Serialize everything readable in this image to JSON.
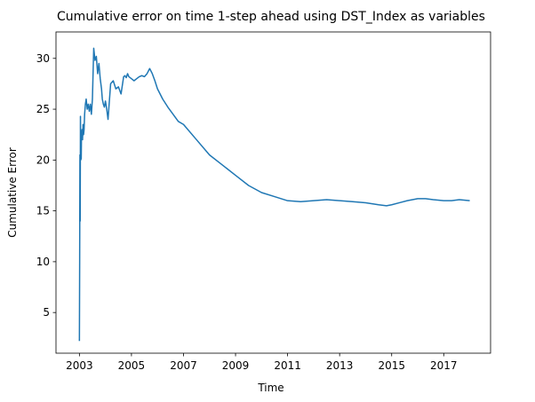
{
  "chart_data": {
    "type": "line",
    "title": "Cumulative error on time 1-step ahead using DST_Index as variables",
    "xlabel": "Time",
    "ylabel": "Cumulative Error",
    "xlim": [
      2002.1,
      2018.8
    ],
    "ylim": [
      1.0,
      32.6
    ],
    "xticks": [
      2003,
      2005,
      2007,
      2009,
      2011,
      2013,
      2015,
      2017
    ],
    "yticks": [
      5,
      10,
      15,
      20,
      25,
      30
    ],
    "grid": false,
    "legend": "none",
    "line_color": "#1f77b4",
    "series": [
      {
        "x": [
          2003.0,
          2003.01,
          2003.02,
          2003.03,
          2003.04,
          2003.05,
          2003.06,
          2003.07,
          2003.08,
          2003.1,
          2003.12,
          2003.14,
          2003.16,
          2003.18,
          2003.2,
          2003.23,
          2003.26,
          2003.3,
          2003.34,
          2003.38,
          2003.42,
          2003.46,
          2003.5,
          2003.55,
          2003.6,
          2003.65,
          2003.7,
          2003.75,
          2003.8,
          2003.85,
          2003.88,
          2003.92,
          2003.96,
          2004.0,
          2004.05,
          2004.1,
          2004.2,
          2004.3,
          2004.4,
          2004.5,
          2004.6,
          2004.7,
          2004.75,
          2004.8,
          2004.85,
          2004.9,
          2005.0,
          2005.1,
          2005.2,
          2005.3,
          2005.4,
          2005.5,
          2005.6,
          2005.7,
          2005.8,
          2005.9,
          2006.0,
          2006.1,
          2006.2,
          2006.4,
          2006.6,
          2006.8,
          2007.0,
          2007.5,
          2008.0,
          2008.5,
          2009.0,
          2009.5,
          2010.0,
          2010.5,
          2011.0,
          2011.5,
          2012.0,
          2012.5,
          2013.0,
          2013.5,
          2014.0,
          2014.5,
          2014.8,
          2015.0,
          2015.3,
          2015.6,
          2016.0,
          2016.3,
          2016.6,
          2017.0,
          2017.3,
          2017.6,
          2018.0
        ],
        "y": [
          2.2,
          10.2,
          20.5,
          14.0,
          24.3,
          20.0,
          21.5,
          20.1,
          22.5,
          23.0,
          22.0,
          23.5,
          22.5,
          23.0,
          24.5,
          25.5,
          26.0,
          25.0,
          25.5,
          24.8,
          25.5,
          24.5,
          26.0,
          31.0,
          29.8,
          30.2,
          28.5,
          29.5,
          28.0,
          27.0,
          26.0,
          25.5,
          25.2,
          25.8,
          25.0,
          24.0,
          27.5,
          27.8,
          27.0,
          27.2,
          26.5,
          28.2,
          28.3,
          28.1,
          28.5,
          28.2,
          28.0,
          27.8,
          28.0,
          28.2,
          28.3,
          28.2,
          28.5,
          29.0,
          28.5,
          27.8,
          27.0,
          26.5,
          26.0,
          25.2,
          24.5,
          23.8,
          23.5,
          22.0,
          20.5,
          19.5,
          18.5,
          17.5,
          16.8,
          16.4,
          16.0,
          15.9,
          16.0,
          16.1,
          16.0,
          15.9,
          15.8,
          15.6,
          15.5,
          15.6,
          15.8,
          16.0,
          16.2,
          16.2,
          16.1,
          16.0,
          16.0,
          16.1,
          16.0
        ]
      }
    ]
  }
}
